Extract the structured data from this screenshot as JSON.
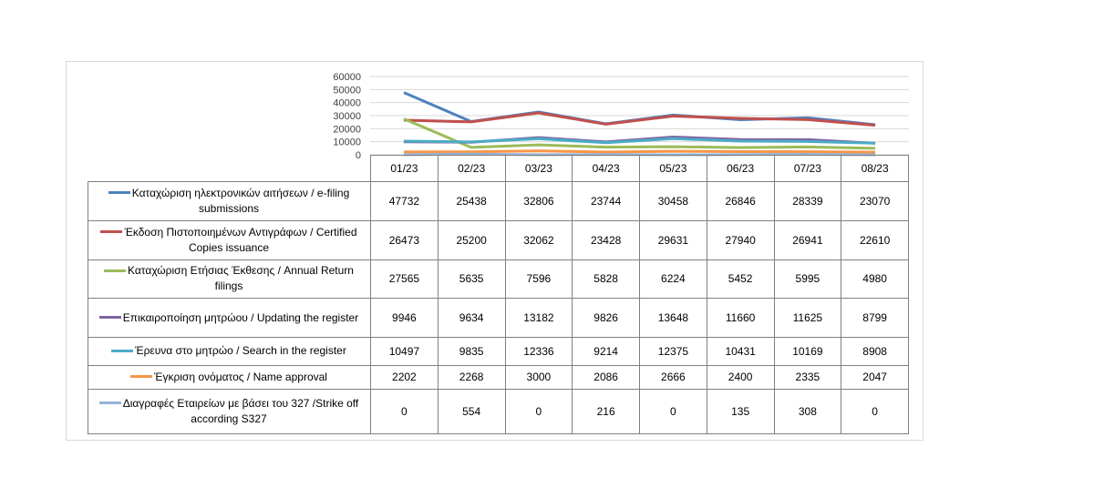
{
  "chart_data": {
    "type": "line",
    "categories": [
      "01/23",
      "02/23",
      "03/23",
      "04/23",
      "05/23",
      "06/23",
      "07/23",
      "08/23"
    ],
    "ylim": [
      0,
      60000
    ],
    "yticks": [
      "0",
      "10000",
      "20000",
      "30000",
      "40000",
      "50000",
      "60000"
    ],
    "grid": true,
    "legend": "table",
    "series": [
      {
        "name": "Καταχώριση ηλεκτρονικών αιτήσεων / e-filing submissions",
        "color": "#4f81bd",
        "values": [
          47732,
          25438,
          32806,
          23744,
          30458,
          26846,
          28339,
          23070
        ]
      },
      {
        "name": "Έκδοση Πιστοποιημένων Αντιγράφων / Certified Copies issuance",
        "color": "#c0504d",
        "values": [
          26473,
          25200,
          32062,
          23428,
          29631,
          27940,
          26941,
          22610
        ]
      },
      {
        "name": "Καταχώριση Ετήσιας Έκθεσης / Annual Return filings",
        "color": "#9bbb59",
        "values": [
          27565,
          5635,
          7596,
          5828,
          6224,
          5452,
          5995,
          4980
        ]
      },
      {
        "name": "Επικαιροποίηση μητρώου / Updating the register",
        "color": "#8064a2",
        "values": [
          9946,
          9634,
          13182,
          9826,
          13648,
          11660,
          11625,
          8799
        ]
      },
      {
        "name": "Έρευνα στο μητρώο / Search in the register",
        "color": "#4bacc6",
        "values": [
          10497,
          9835,
          12336,
          9214,
          12375,
          10431,
          10169,
          8908
        ]
      },
      {
        "name": "Έγκριση ονόματος / Name approval",
        "color": "#f79646",
        "values": [
          2202,
          2268,
          3000,
          2086,
          2666,
          2400,
          2335,
          2047
        ]
      },
      {
        "name": "Διαγραφές Εταιρείων  με  βάσει του 327 /Strike off according S327",
        "color": "#95b3d7",
        "values": [
          0,
          554,
          0,
          216,
          0,
          135,
          308,
          0
        ]
      }
    ]
  }
}
